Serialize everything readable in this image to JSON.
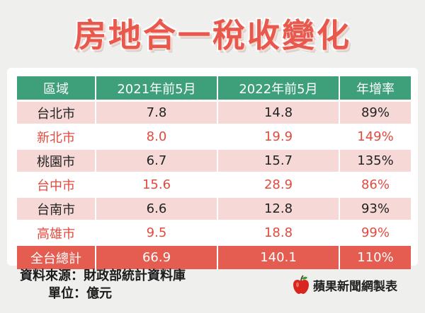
{
  "title": "房地合一稅收變化",
  "table": {
    "headers": [
      "區域",
      "2021年前5月",
      "2022年前5月",
      "年增率"
    ],
    "rows": [
      {
        "region": "台北市",
        "y2021": "7.8",
        "y2022": "14.8",
        "growth": "89%"
      },
      {
        "region": "新北市",
        "y2021": "8.0",
        "y2022": "19.9",
        "growth": "149%"
      },
      {
        "region": "桃園市",
        "y2021": "6.7",
        "y2022": "15.7",
        "growth": "135%"
      },
      {
        "region": "台中市",
        "y2021": "15.6",
        "y2022": "28.9",
        "growth": "86%"
      },
      {
        "region": "台南市",
        "y2021": "6.6",
        "y2022": "12.8",
        "growth": "93%"
      },
      {
        "region": "高雄市",
        "y2021": "9.5",
        "y2022": "18.8",
        "growth": "99%"
      }
    ],
    "total": {
      "region": "全台總計",
      "y2021": "66.9",
      "y2022": "140.1",
      "growth": "110%"
    }
  },
  "footer": {
    "source": "資料來源：財政部統計資料庫",
    "unit": "單位：億元",
    "brand": "蘋果新聞網製表",
    "brand_icon": "apple-icon"
  },
  "colors": {
    "title": "#e8584c",
    "header": "#3e9f7b",
    "row_pink": "#f6d9d6",
    "row_red_text": "#e34a3e",
    "total_row": "#e55d51"
  }
}
